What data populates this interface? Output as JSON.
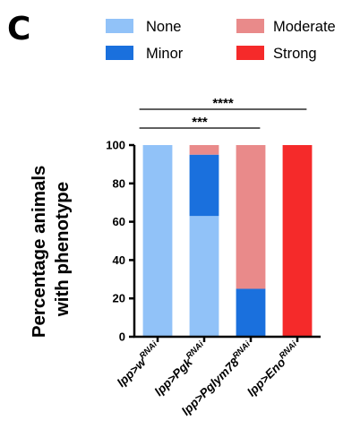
{
  "panel_label": "C",
  "legend": [
    {
      "key": "none",
      "label": "None",
      "color": "#91c2f8"
    },
    {
      "key": "minor",
      "label": "Minor",
      "color": "#1a70dd"
    },
    {
      "key": "moderate",
      "label": "Moderate",
      "color": "#e98a8a"
    },
    {
      "key": "strong",
      "label": "Strong",
      "color": "#f52a2a"
    }
  ],
  "chart_data": {
    "type": "bar",
    "stacked": true,
    "ylabel_lines": [
      "Percentage animals",
      "with phenotype"
    ],
    "ylim": [
      0,
      100
    ],
    "yticks": [
      0,
      20,
      40,
      60,
      80,
      100
    ],
    "categories": [
      {
        "base": "lpp>",
        "italic": "w",
        "sup": "RNAi"
      },
      {
        "base": "lpp>",
        "italic": "Pgk",
        "sup": "RNAi"
      },
      {
        "base": "lpp>",
        "italic": "Pglym78",
        "sup": "RNAi"
      },
      {
        "base": "lpp>",
        "italic": "Eno",
        "sup": "RNAi"
      }
    ],
    "series": [
      {
        "name": "None",
        "color": "#91c2f8",
        "values": [
          100,
          63,
          0,
          0
        ]
      },
      {
        "name": "Minor",
        "color": "#1a70dd",
        "values": [
          0,
          32,
          25,
          0
        ]
      },
      {
        "name": "Moderate",
        "color": "#e98a8a",
        "values": [
          0,
          5,
          75,
          0
        ]
      },
      {
        "name": "Strong",
        "color": "#f52a2a",
        "values": [
          0,
          0,
          0,
          100
        ]
      }
    ],
    "significance": [
      {
        "from": 0,
        "to": 2,
        "label": "***"
      },
      {
        "from": 0,
        "to": 3,
        "label": "****"
      }
    ]
  }
}
